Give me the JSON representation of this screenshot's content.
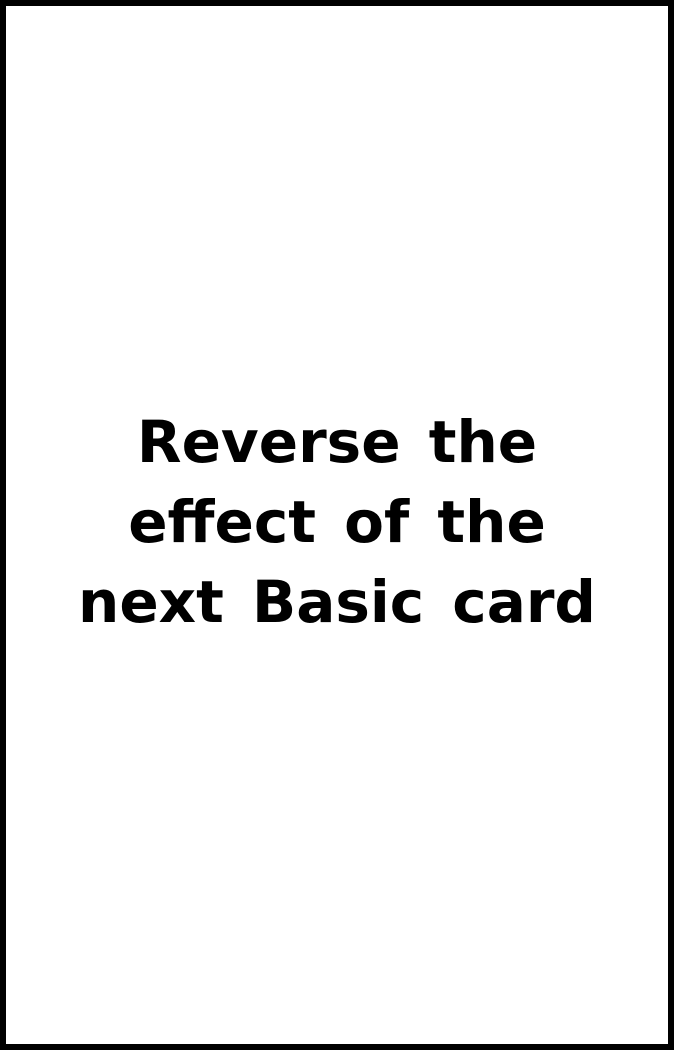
{
  "card": {
    "text": "Reverse the effect of the next Basic card"
  }
}
